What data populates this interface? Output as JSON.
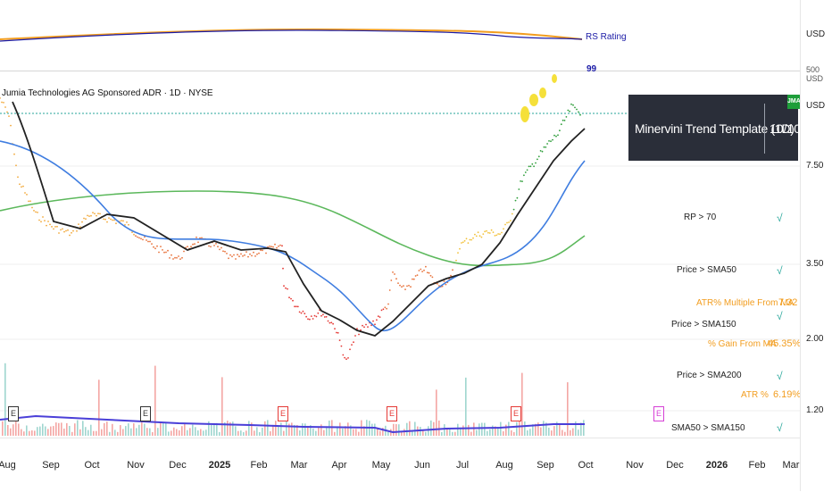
{
  "chart": {
    "symbol_title": "Jumia Technologies AG Sponsored ADR · 1D · NYSE",
    "rs_rating_label": "RS Rating",
    "rs_marker": "99",
    "currency_top": "USD",
    "currency_top_sub": "500 USD",
    "currency_main": "USD",
    "price_scale": [
      "7.50",
      "3.50",
      "2.00",
      "1.20"
    ],
    "time_axis": [
      {
        "label": "Aug",
        "year": false
      },
      {
        "label": "Sep",
        "year": false
      },
      {
        "label": "Oct",
        "year": false
      },
      {
        "label": "Nov",
        "year": false
      },
      {
        "label": "Dec",
        "year": false
      },
      {
        "label": "2025",
        "year": true
      },
      {
        "label": "Feb",
        "year": false
      },
      {
        "label": "Mar",
        "year": false
      },
      {
        "label": "Apr",
        "year": false
      },
      {
        "label": "May",
        "year": false
      },
      {
        "label": "Jun",
        "year": false
      },
      {
        "label": "Jul",
        "year": false
      },
      {
        "label": "Aug",
        "year": false
      },
      {
        "label": "Sep",
        "year": false
      },
      {
        "label": "Oct",
        "year": false
      },
      {
        "label": "Nov",
        "year": false
      },
      {
        "label": "Dec",
        "year": false
      },
      {
        "label": "2026",
        "year": true
      },
      {
        "label": "Feb",
        "year": false
      },
      {
        "label": "Mar",
        "year": false
      }
    ],
    "earnings_marker": "E",
    "colors": {
      "sma50": "#222222",
      "sma150": "#3f7de0",
      "sma200": "#5cb85c",
      "rs_line": "#1a1aa6",
      "rs_ma": "#f29d1f",
      "up": "#26a69a",
      "down": "#ef5350"
    }
  },
  "trend_template": {
    "title": "Minervini Trend Template (1D)",
    "score": "10/10",
    "badge": "JMA",
    "conditions": [
      {
        "label": "RP > 70",
        "check": "√"
      },
      {
        "label": "Price > SMA50",
        "check": "√"
      },
      {
        "label": "Price > SMA150",
        "check": "√"
      },
      {
        "label": "Price > SMA200",
        "check": "√"
      },
      {
        "label": "SMA50 > SMA150",
        "check": "√"
      }
    ],
    "metrics": [
      {
        "label": "ATR% Multiple From MA",
        "value": "7.32"
      },
      {
        "label": "% Gain From MA",
        "value": "45.35%"
      },
      {
        "label": "ATR %",
        "value": "6.19%"
      }
    ]
  }
}
